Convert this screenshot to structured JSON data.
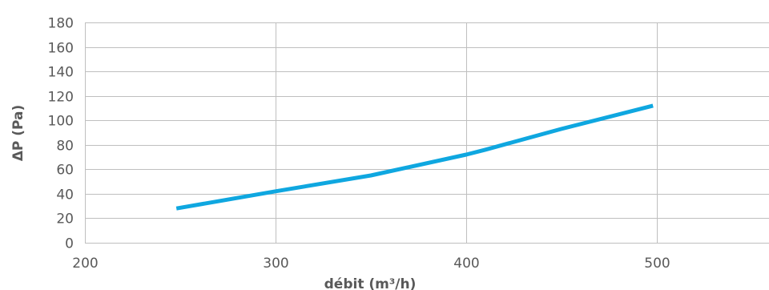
{
  "chart_data": {
    "type": "line",
    "title": "",
    "xlabel": "débit (m³/h)",
    "ylabel": "ΔP (Pa)",
    "xlim": [
      200,
      560
    ],
    "ylim": [
      0,
      180
    ],
    "x_ticks": [
      "200",
      "300",
      "400",
      "500"
    ],
    "y_ticks": [
      "0",
      "20",
      "40",
      "60",
      "80",
      "100",
      "120",
      "140",
      "160",
      "180"
    ],
    "grid": true,
    "legend": "none",
    "series": [
      {
        "color": "#0fa7e0",
        "x": [
          248,
          300,
          350,
          400,
          410,
          450,
          498
        ],
        "y": [
          28,
          42,
          55,
          72,
          76,
          93,
          112
        ]
      }
    ]
  }
}
